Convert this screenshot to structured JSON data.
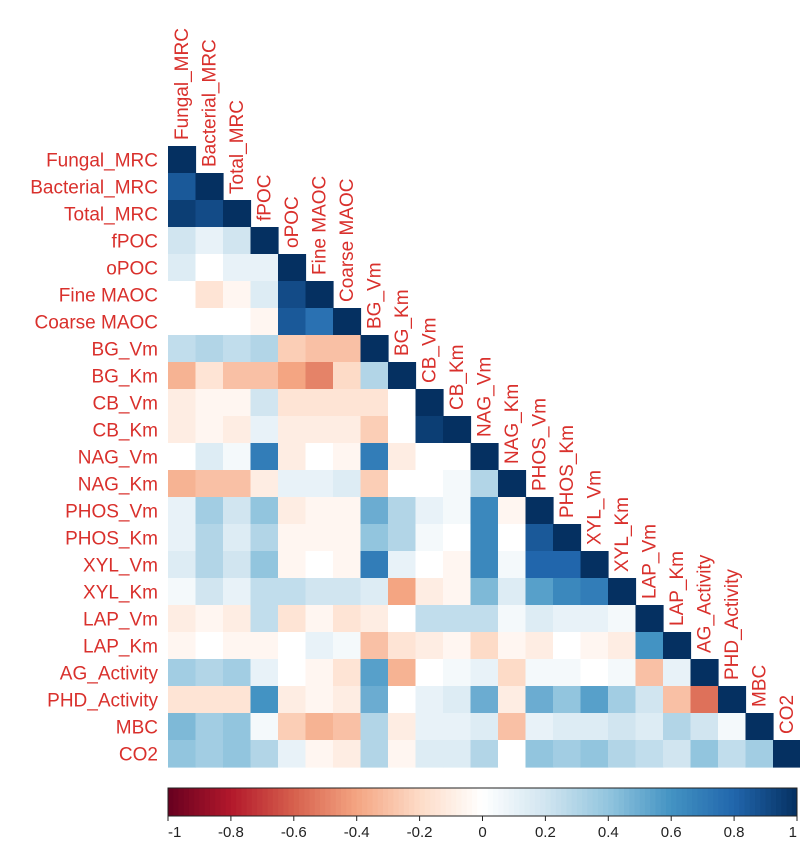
{
  "chart_data": {
    "type": "heatmap",
    "title": "",
    "variables": [
      "Fungal_MRC",
      "Bacterial_MRC",
      "Total_MRC",
      "fPOC",
      "oPOC",
      "Fine MAOC",
      "Coarse MAOC",
      "BG_Vm",
      "BG_Km",
      "CB_Vm",
      "CB_Km",
      "NAG_Vm",
      "NAG_Km",
      "PHOS_Vm",
      "PHOS_Km",
      "XYL_Vm",
      "XYL_Km",
      "LAP_Vm",
      "LAP_Km",
      "AG_Activity",
      "PHD_Activity",
      "MBC",
      "CO2"
    ],
    "matrix_shape": "lower-triangle",
    "rows": [
      [
        1.0
      ],
      [
        0.85,
        1.0
      ],
      [
        0.95,
        0.9,
        1.0
      ],
      [
        0.2,
        0.1,
        0.2,
        1.0
      ],
      [
        0.15,
        0.0,
        0.1,
        0.1,
        1.0
      ],
      [
        0.0,
        -0.15,
        -0.05,
        0.15,
        0.9,
        1.0
      ],
      [
        0.0,
        0.0,
        0.0,
        -0.05,
        0.85,
        0.75,
        1.0
      ],
      [
        0.25,
        0.3,
        0.25,
        0.3,
        -0.25,
        -0.3,
        -0.3,
        1.0
      ],
      [
        -0.35,
        -0.15,
        -0.3,
        -0.3,
        -0.4,
        -0.5,
        -0.2,
        0.3,
        1.0
      ],
      [
        -0.1,
        -0.05,
        -0.05,
        0.2,
        -0.15,
        -0.15,
        -0.15,
        -0.15,
        0.0,
        1.0
      ],
      [
        -0.1,
        -0.05,
        -0.1,
        0.1,
        -0.1,
        -0.1,
        -0.1,
        -0.25,
        0.0,
        0.95,
        1.0
      ],
      [
        0.0,
        0.15,
        0.05,
        0.7,
        -0.1,
        0.0,
        -0.05,
        0.7,
        -0.1,
        0.0,
        0.0,
        1.0
      ],
      [
        -0.35,
        -0.3,
        -0.3,
        -0.1,
        0.1,
        0.1,
        0.15,
        -0.25,
        0.0,
        0.0,
        0.05,
        0.3,
        1.0
      ],
      [
        0.1,
        0.35,
        0.2,
        0.4,
        -0.1,
        -0.05,
        -0.05,
        0.5,
        0.3,
        0.1,
        0.05,
        0.65,
        -0.05,
        1.0
      ],
      [
        0.1,
        0.3,
        0.15,
        0.3,
        -0.05,
        -0.05,
        -0.05,
        0.4,
        0.3,
        0.05,
        0.0,
        0.65,
        0.0,
        0.85,
        1.0
      ],
      [
        0.15,
        0.3,
        0.2,
        0.4,
        -0.05,
        0.0,
        -0.05,
        0.7,
        0.1,
        0.0,
        -0.05,
        0.65,
        0.05,
        0.8,
        0.8,
        1.0
      ],
      [
        0.05,
        0.2,
        0.1,
        0.25,
        0.25,
        0.2,
        0.2,
        0.15,
        -0.4,
        -0.1,
        -0.05,
        0.45,
        0.15,
        0.55,
        0.65,
        0.7,
        1.0
      ],
      [
        -0.1,
        -0.05,
        -0.1,
        0.25,
        -0.15,
        -0.05,
        -0.15,
        -0.1,
        0.0,
        0.25,
        0.25,
        0.25,
        0.05,
        0.15,
        0.1,
        0.1,
        0.05,
        1.0
      ],
      [
        -0.05,
        0.0,
        -0.05,
        -0.05,
        0.0,
        0.1,
        0.05,
        -0.3,
        -0.15,
        -0.1,
        -0.05,
        -0.2,
        -0.05,
        -0.1,
        0.0,
        -0.05,
        -0.1,
        0.6,
        1.0
      ],
      [
        0.35,
        0.3,
        0.35,
        0.1,
        0.0,
        -0.05,
        -0.15,
        0.55,
        -0.35,
        0.0,
        0.05,
        0.1,
        -0.2,
        0.05,
        0.05,
        0.0,
        0.05,
        -0.3,
        0.1,
        1.0
      ],
      [
        -0.15,
        -0.15,
        -0.15,
        0.6,
        -0.1,
        -0.05,
        -0.1,
        0.5,
        0.0,
        0.1,
        0.15,
        0.5,
        -0.1,
        0.5,
        0.4,
        0.55,
        0.35,
        0.2,
        -0.3,
        -0.55,
        1.0
      ],
      [
        0.45,
        0.35,
        0.4,
        0.05,
        -0.25,
        -0.35,
        -0.3,
        0.3,
        -0.1,
        0.1,
        0.1,
        0.15,
        -0.3,
        0.1,
        0.15,
        0.15,
        0.2,
        0.15,
        0.3,
        0.2,
        0.05,
        1.0
      ],
      [
        0.4,
        0.35,
        0.4,
        0.3,
        0.1,
        -0.05,
        -0.1,
        0.3,
        -0.05,
        0.15,
        0.15,
        0.3,
        0.0,
        0.4,
        0.35,
        0.4,
        0.3,
        0.25,
        0.2,
        0.4,
        0.25,
        0.35,
        1.0
      ]
    ],
    "colorbar": {
      "min": -1,
      "max": 1,
      "ticks": [
        "-1",
        "-0.8",
        "-0.6",
        "-0.4",
        "-0.2",
        "0",
        "0.2",
        "0.4",
        "0.6",
        "0.8",
        "1"
      ],
      "colors": [
        "#67001f",
        "#b2182b",
        "#d6604d",
        "#f4a582",
        "#fddbc7",
        "#ffffff",
        "#d1e5f0",
        "#92c5de",
        "#4393c3",
        "#2166ac",
        "#053061"
      ]
    },
    "label_color": "#d9302c"
  }
}
